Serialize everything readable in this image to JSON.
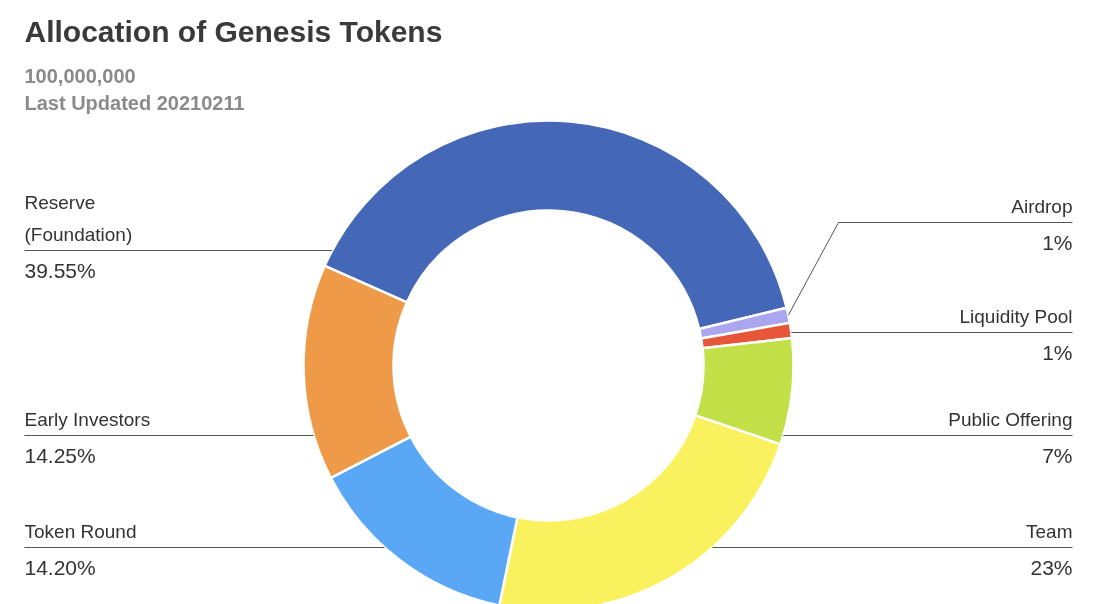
{
  "chart_data": {
    "type": "donut",
    "title": "Allocation of Genesis Tokens",
    "subtitle": "100,000,000\nLast Updated 20210211",
    "categories": [
      "Reserve\n(Foundation)",
      "Airdrop",
      "Liquidity Pool",
      "Public Offering",
      "Team",
      "Token Round",
      "Early Investors"
    ],
    "values": [
      39.55,
      1,
      1,
      7,
      23,
      14.2,
      14.25
    ],
    "value_labels": [
      "39.55%",
      "1%",
      "1%",
      "7%",
      "23%",
      "14.20%",
      "14.25%"
    ],
    "colors": [
      "#4467b7",
      "#aaa6f0",
      "#e8563a",
      "#c4e048",
      "#f9f25e",
      "#5aa8f5",
      "#ee9a48"
    ]
  }
}
